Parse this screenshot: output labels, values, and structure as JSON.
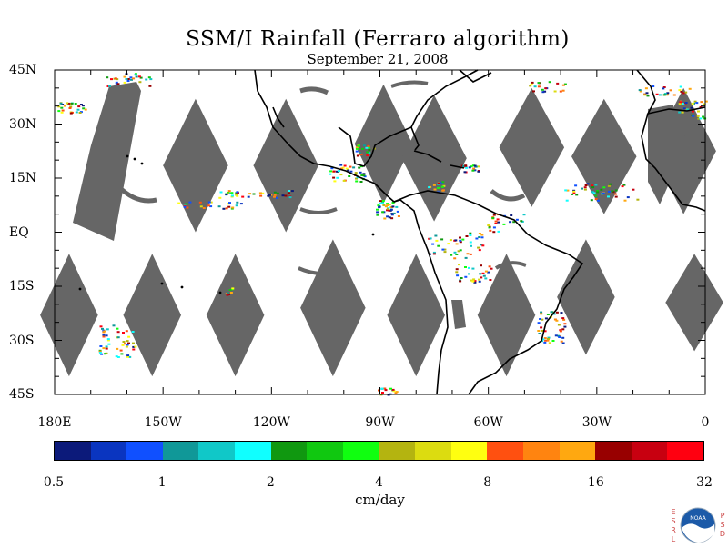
{
  "title": "SSM/I Rainfall (Ferraro algorithm)",
  "subtitle": "September 21, 2008",
  "map": {
    "projection": "equirectangular",
    "lon_range": [
      "180E",
      "0"
    ],
    "lat_range": [
      "45S",
      "45N"
    ],
    "lat_labels": [
      "45N",
      "30N",
      "15N",
      "EQ",
      "15S",
      "30S",
      "45S"
    ],
    "lon_labels": [
      "180E",
      "150W",
      "120W",
      "90W",
      "60W",
      "30W",
      "0"
    ],
    "missing_data_color": "#666666",
    "coastline_color": "#000000"
  },
  "colorbar": {
    "units": "cm/day",
    "tick_labels": [
      "0.5",
      "1",
      "2",
      "4",
      "8",
      "16",
      "32"
    ],
    "colors": [
      "#0c1a7a",
      "#0a35c0",
      "#1050ff",
      "#109898",
      "#10c8c8",
      "#10ffff",
      "#109810",
      "#10c810",
      "#10ff10",
      "#b4b410",
      "#dcdc10",
      "#ffff10",
      "#ff5010",
      "#ff8410",
      "#ffa810",
      "#980000",
      "#c80010",
      "#ff0010"
    ]
  },
  "logo": {
    "text": "NOAA",
    "left_letters": "ESRL",
    "right_letters": "PSD"
  }
}
